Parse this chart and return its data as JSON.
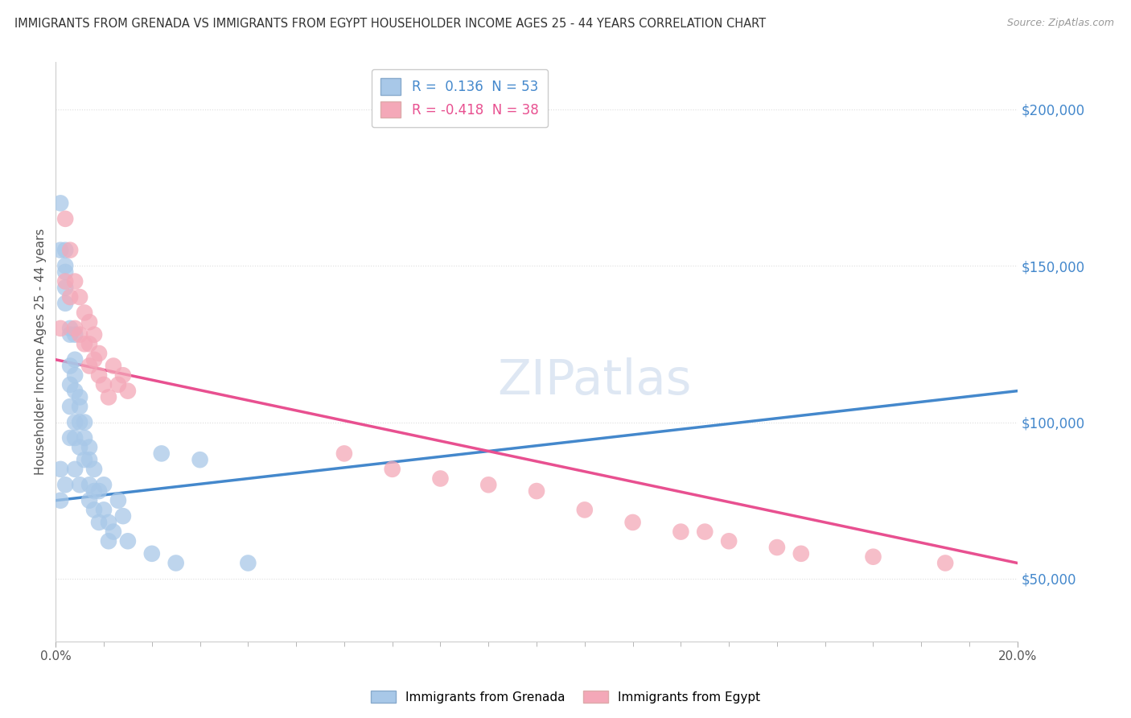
{
  "title": "IMMIGRANTS FROM GRENADA VS IMMIGRANTS FROM EGYPT HOUSEHOLDER INCOME AGES 25 - 44 YEARS CORRELATION CHART",
  "source": "Source: ZipAtlas.com",
  "ylabel": "Householder Income Ages 25 - 44 years",
  "xlim": [
    0.0,
    0.2
  ],
  "ylim": [
    30000,
    215000
  ],
  "yticks": [
    50000,
    100000,
    150000,
    200000
  ],
  "ytick_labels": [
    "$50,000",
    "$100,000",
    "$150,000",
    "$200,000"
  ],
  "legend_r1": "R =  0.136  N = 53",
  "legend_r2": "R = -0.418  N = 38",
  "color_grenada": "#a8c8e8",
  "color_egypt": "#f4a8b8",
  "color_grenada_line": "#4488cc",
  "color_egypt_line": "#e85090",
  "color_dashed": "#aabbd0",
  "watermark_color": "#c8d8ec",
  "grenada_x": [
    0.001,
    0.001,
    0.001,
    0.001,
    0.002,
    0.002,
    0.002,
    0.002,
    0.002,
    0.002,
    0.003,
    0.003,
    0.003,
    0.003,
    0.003,
    0.003,
    0.004,
    0.004,
    0.004,
    0.004,
    0.004,
    0.004,
    0.004,
    0.005,
    0.005,
    0.005,
    0.005,
    0.005,
    0.006,
    0.006,
    0.006,
    0.007,
    0.007,
    0.007,
    0.007,
    0.008,
    0.008,
    0.008,
    0.009,
    0.009,
    0.01,
    0.01,
    0.011,
    0.011,
    0.012,
    0.013,
    0.014,
    0.015,
    0.02,
    0.022,
    0.025,
    0.03,
    0.04
  ],
  "grenada_y": [
    170000,
    155000,
    85000,
    75000,
    155000,
    150000,
    148000,
    143000,
    138000,
    80000,
    130000,
    128000,
    118000,
    112000,
    105000,
    95000,
    128000,
    120000,
    115000,
    110000,
    100000,
    95000,
    85000,
    108000,
    105000,
    100000,
    92000,
    80000,
    100000,
    95000,
    88000,
    92000,
    88000,
    80000,
    75000,
    85000,
    78000,
    72000,
    78000,
    68000,
    80000,
    72000,
    68000,
    62000,
    65000,
    75000,
    70000,
    62000,
    58000,
    90000,
    55000,
    88000,
    55000
  ],
  "egypt_x": [
    0.001,
    0.002,
    0.002,
    0.003,
    0.003,
    0.004,
    0.004,
    0.005,
    0.005,
    0.006,
    0.006,
    0.007,
    0.007,
    0.007,
    0.008,
    0.008,
    0.009,
    0.009,
    0.01,
    0.011,
    0.012,
    0.013,
    0.014,
    0.015,
    0.06,
    0.07,
    0.08,
    0.09,
    0.1,
    0.11,
    0.12,
    0.13,
    0.135,
    0.14,
    0.15,
    0.155,
    0.17,
    0.185
  ],
  "egypt_y": [
    130000,
    165000,
    145000,
    155000,
    140000,
    145000,
    130000,
    140000,
    128000,
    135000,
    125000,
    132000,
    125000,
    118000,
    128000,
    120000,
    122000,
    115000,
    112000,
    108000,
    118000,
    112000,
    115000,
    110000,
    90000,
    85000,
    82000,
    80000,
    78000,
    72000,
    68000,
    65000,
    65000,
    62000,
    60000,
    58000,
    57000,
    55000
  ]
}
